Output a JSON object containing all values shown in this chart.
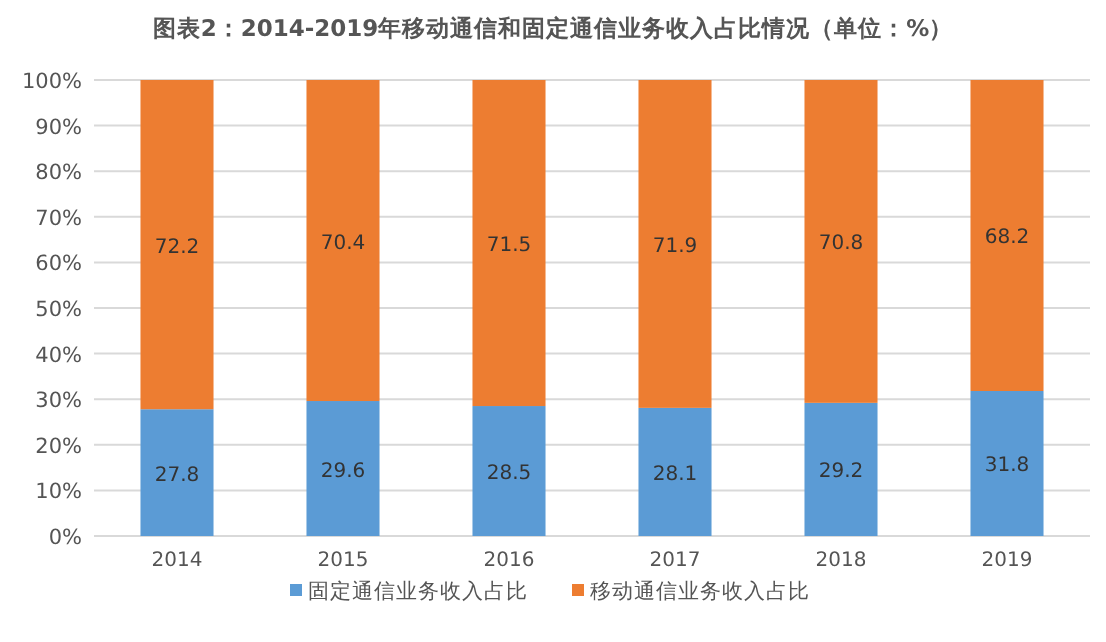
{
  "chart_data": {
    "type": "bar",
    "stacked": true,
    "title": "图表2：2014-2019年移动通信和固定通信业务收入占比情况（单位：%）",
    "categories": [
      "2014",
      "2015",
      "2016",
      "2017",
      "2018",
      "2019"
    ],
    "series": [
      {
        "name": "固定通信业务收入占比",
        "color": "#5b9bd5",
        "values": [
          27.8,
          29.6,
          28.5,
          28.1,
          29.2,
          31.8
        ]
      },
      {
        "name": "移动通信业务收入占比",
        "color": "#ed7d31",
        "values": [
          72.2,
          70.4,
          71.5,
          71.9,
          70.8,
          68.2
        ]
      }
    ],
    "ylim": [
      0,
      100
    ],
    "yticks": [
      {
        "value": 0,
        "label": "0%"
      },
      {
        "value": 10,
        "label": "10%"
      },
      {
        "value": 20,
        "label": "20%"
      },
      {
        "value": 30,
        "label": "30%"
      },
      {
        "value": 40,
        "label": "40%"
      },
      {
        "value": 50,
        "label": "50%"
      },
      {
        "value": 60,
        "label": "60%"
      },
      {
        "value": 70,
        "label": "70%"
      },
      {
        "value": 80,
        "label": "80%"
      },
      {
        "value": 90,
        "label": "90%"
      },
      {
        "value": 100,
        "label": "100%"
      }
    ],
    "grid": "y",
    "legend": "bottom",
    "data_labels": true
  }
}
